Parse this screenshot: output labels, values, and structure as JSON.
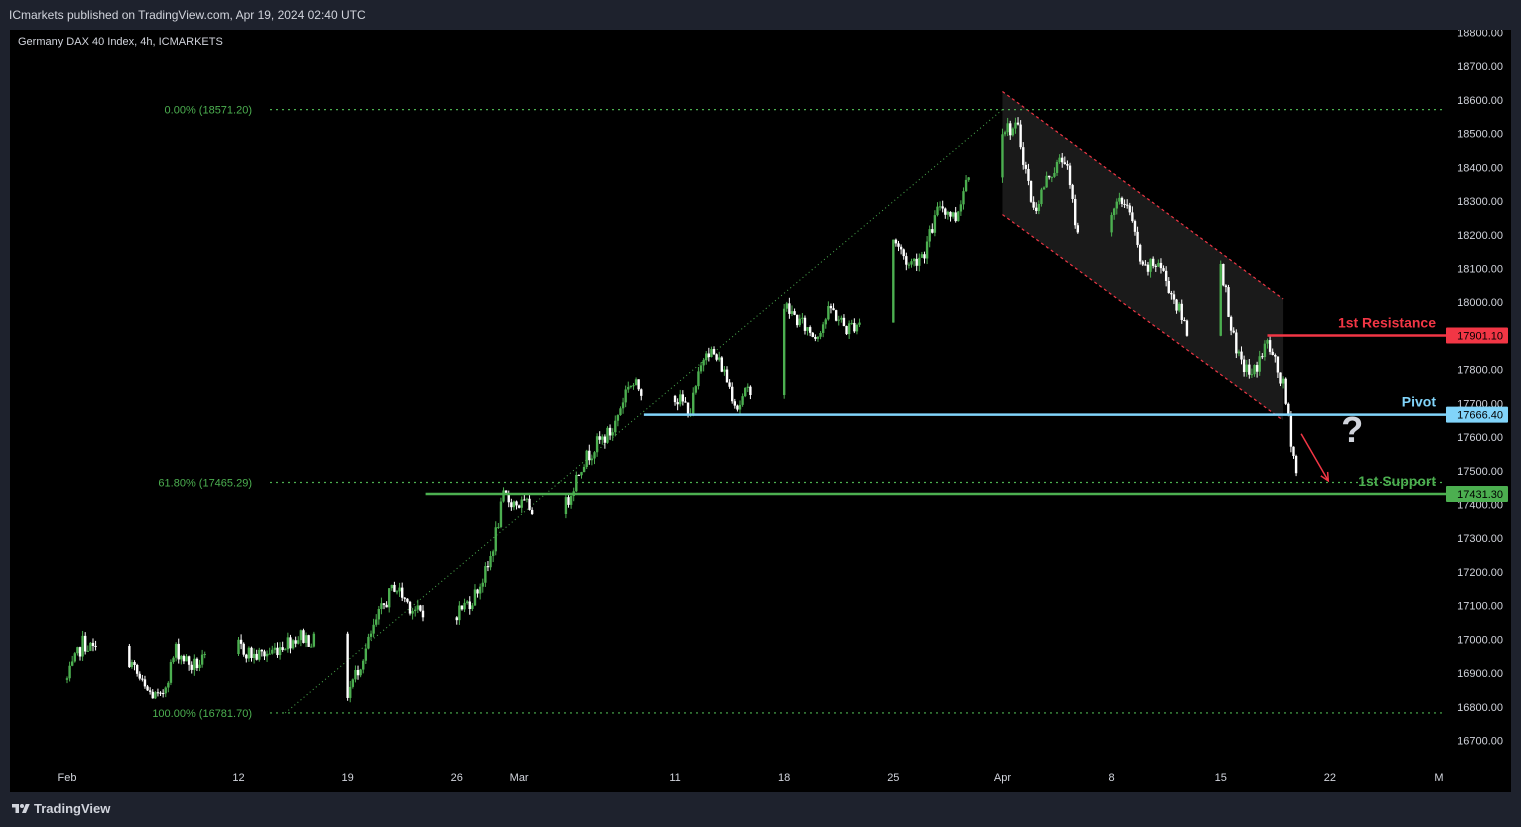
{
  "header": {
    "publisher_line": "ICmarkets published on TradingView.com, Apr 19, 2024 02:40 UTC"
  },
  "footer": {
    "brand": "TradingView"
  },
  "chart_data": {
    "type": "candlestick",
    "title": "Germany DAX 40 Index, 4h, ICMARKETS",
    "y_axis": {
      "range": [
        16620,
        18840
      ],
      "ticks": [
        16700,
        16800,
        16900,
        17000,
        17100,
        17200,
        17300,
        17400,
        17500,
        17600,
        17700,
        17800,
        17900,
        18000,
        18100,
        18200,
        18300,
        18400,
        18500,
        18600,
        18700,
        18800
      ],
      "tick_labels": [
        "16700.00",
        "16800.00",
        "16900.00",
        "17000.00",
        "17100.00",
        "17200.00",
        "17300.00",
        "17400.00",
        "17500.00",
        "17600.00",
        "17700.00",
        "17800.00",
        "17900.00",
        "18000.00",
        "18100.00",
        "18200.00",
        "18300.00",
        "18400.00",
        "18500.00",
        "18600.00",
        "18700.00",
        "18800.00"
      ]
    },
    "x_axis": {
      "range": [
        "2024-02-01",
        "2024-04-29"
      ],
      "ticks": [
        {
          "date": "2024-02-01",
          "label": "Feb"
        },
        {
          "date": "2024-02-12",
          "label": "12"
        },
        {
          "date": "2024-02-19",
          "label": "19"
        },
        {
          "date": "2024-02-26",
          "label": "26"
        },
        {
          "date": "2024-03-01",
          "label": "Mar"
        },
        {
          "date": "2024-03-11",
          "label": "11"
        },
        {
          "date": "2024-03-18",
          "label": "18"
        },
        {
          "date": "2024-03-25",
          "label": "25"
        },
        {
          "date": "2024-04-01",
          "label": "Apr"
        },
        {
          "date": "2024-04-08",
          "label": "8"
        },
        {
          "date": "2024-04-15",
          "label": "15"
        },
        {
          "date": "2024-04-22",
          "label": "22"
        },
        {
          "date": "2024-04-29",
          "label": "M"
        }
      ]
    },
    "close_path": [
      [
        "2024-02-01",
        16880
      ],
      [
        "2024-02-02",
        16990
      ],
      [
        "2024-02-03",
        16960
      ],
      [
        "2024-02-05",
        16940
      ],
      [
        "2024-02-06",
        16850
      ],
      [
        "2024-02-07",
        16820
      ],
      [
        "2024-02-08",
        16970
      ],
      [
        "2024-02-09",
        16920
      ],
      [
        "2024-02-10",
        16940
      ],
      [
        "2024-02-11",
        17030
      ],
      [
        "2024-02-12",
        16980
      ],
      [
        "2024-02-13",
        16950
      ],
      [
        "2024-02-14",
        16960
      ],
      [
        "2024-02-15",
        16990
      ],
      [
        "2024-02-16",
        17010
      ],
      [
        "2024-02-17",
        16990
      ],
      [
        "2024-02-18",
        16820
      ],
      [
        "2024-02-19",
        16840
      ],
      [
        "2024-02-20",
        16950
      ],
      [
        "2024-02-21",
        17070
      ],
      [
        "2024-02-22",
        17160
      ],
      [
        "2024-02-23",
        17100
      ],
      [
        "2024-02-24",
        17060
      ],
      [
        "2024-02-25",
        17050
      ],
      [
        "2024-02-26",
        17080
      ],
      [
        "2024-02-27",
        17120
      ],
      [
        "2024-02-28",
        17210
      ],
      [
        "2024-02-29",
        17420
      ],
      [
        "2024-03-01",
        17400
      ],
      [
        "2024-03-02",
        17390
      ],
      [
        "2024-03-03",
        17420
      ],
      [
        "2024-03-04",
        17400
      ],
      [
        "2024-03-05",
        17520
      ],
      [
        "2024-03-06",
        17580
      ],
      [
        "2024-03-07",
        17620
      ],
      [
        "2024-03-08",
        17760
      ],
      [
        "2024-03-09",
        17740
      ],
      [
        "2024-03-10",
        17700
      ],
      [
        "2024-03-11",
        17720
      ],
      [
        "2024-03-12",
        17680
      ],
      [
        "2024-03-13",
        17870
      ],
      [
        "2024-03-14",
        17810
      ],
      [
        "2024-03-15",
        17690
      ],
      [
        "2024-03-16",
        17760
      ],
      [
        "2024-03-17",
        17960
      ],
      [
        "2024-03-18",
        17990
      ],
      [
        "2024-03-19",
        17940
      ],
      [
        "2024-03-20",
        17900
      ],
      [
        "2024-03-21",
        17980
      ],
      [
        "2024-03-22",
        17920
      ],
      [
        "2024-03-23",
        17950
      ],
      [
        "2024-03-24",
        18000
      ],
      [
        "2024-03-25",
        18190
      ],
      [
        "2024-03-26",
        18110
      ],
      [
        "2024-03-27",
        18150
      ],
      [
        "2024-03-28",
        18290
      ],
      [
        "2024-03-29",
        18250
      ],
      [
        "2024-03-30",
        18420
      ],
      [
        "2024-03-31",
        18540
      ],
      [
        "2024-04-01",
        18520
      ],
      [
        "2024-04-02",
        18510
      ],
      [
        "2024-04-03",
        18270
      ],
      [
        "2024-04-04",
        18380
      ],
      [
        "2024-04-05",
        18430
      ],
      [
        "2024-04-06",
        18150
      ],
      [
        "2024-04-07",
        18190
      ],
      [
        "2024-04-08",
        18280
      ],
      [
        "2024-04-09",
        18300
      ],
      [
        "2024-04-10",
        18090
      ],
      [
        "2024-04-11",
        18120
      ],
      [
        "2024-04-12",
        18010
      ],
      [
        "2024-04-13",
        17900
      ],
      [
        "2024-04-14",
        18030
      ],
      [
        "2024-04-15",
        18120
      ],
      [
        "2024-04-16",
        17840
      ],
      [
        "2024-04-17",
        17780
      ],
      [
        "2024-04-18",
        17880
      ],
      [
        "2024-04-19",
        17750
      ],
      [
        "2024-04-20",
        17440
      ]
    ],
    "fibonacci": [
      {
        "label": "0.00% (18571.20)",
        "price": 18571.2
      },
      {
        "label": "61.80% (17465.29)",
        "price": 17465.29
      },
      {
        "label": "100.00% (16781.70)",
        "price": 16781.7
      }
    ],
    "fib_trendline": {
      "from": [
        "2024-02-15",
        16781.7
      ],
      "to": [
        "2024-04-01",
        18571.2
      ]
    },
    "descending_channel": {
      "upper": [
        [
          "2024-04-01",
          18625
        ],
        [
          "2024-04-19",
          18010
        ]
      ],
      "lower": [
        [
          "2024-04-01",
          18260
        ],
        [
          "2024-04-19",
          17650
        ]
      ]
    },
    "levels": [
      {
        "name": "1st Resistance",
        "price_label": "17901.10",
        "price": 17901.1,
        "color": "#f23645",
        "start": "2024-04-18"
      },
      {
        "name": "Pivot",
        "price_label": "17666.40",
        "price": 17666.4,
        "color": "#81d4fa",
        "start": "2024-03-09"
      },
      {
        "name": "1st Support",
        "price_label": "17431.30",
        "price": 17431.3,
        "color": "#4caf50",
        "start": "2024-02-24"
      }
    ],
    "annotations": {
      "question_mark": "?",
      "arrow": {
        "from": [
          "2024-04-19",
          17610
        ],
        "to": [
          "2024-04-21",
          17470
        ],
        "color": "#f23645"
      }
    },
    "colors": {
      "up": "#4caf50",
      "down": "#ffffff",
      "fib": "#4caf50",
      "channel": "#f23645",
      "background": "#000000",
      "frame": "#1e222d",
      "axis_text": "#d1d4dc"
    }
  }
}
